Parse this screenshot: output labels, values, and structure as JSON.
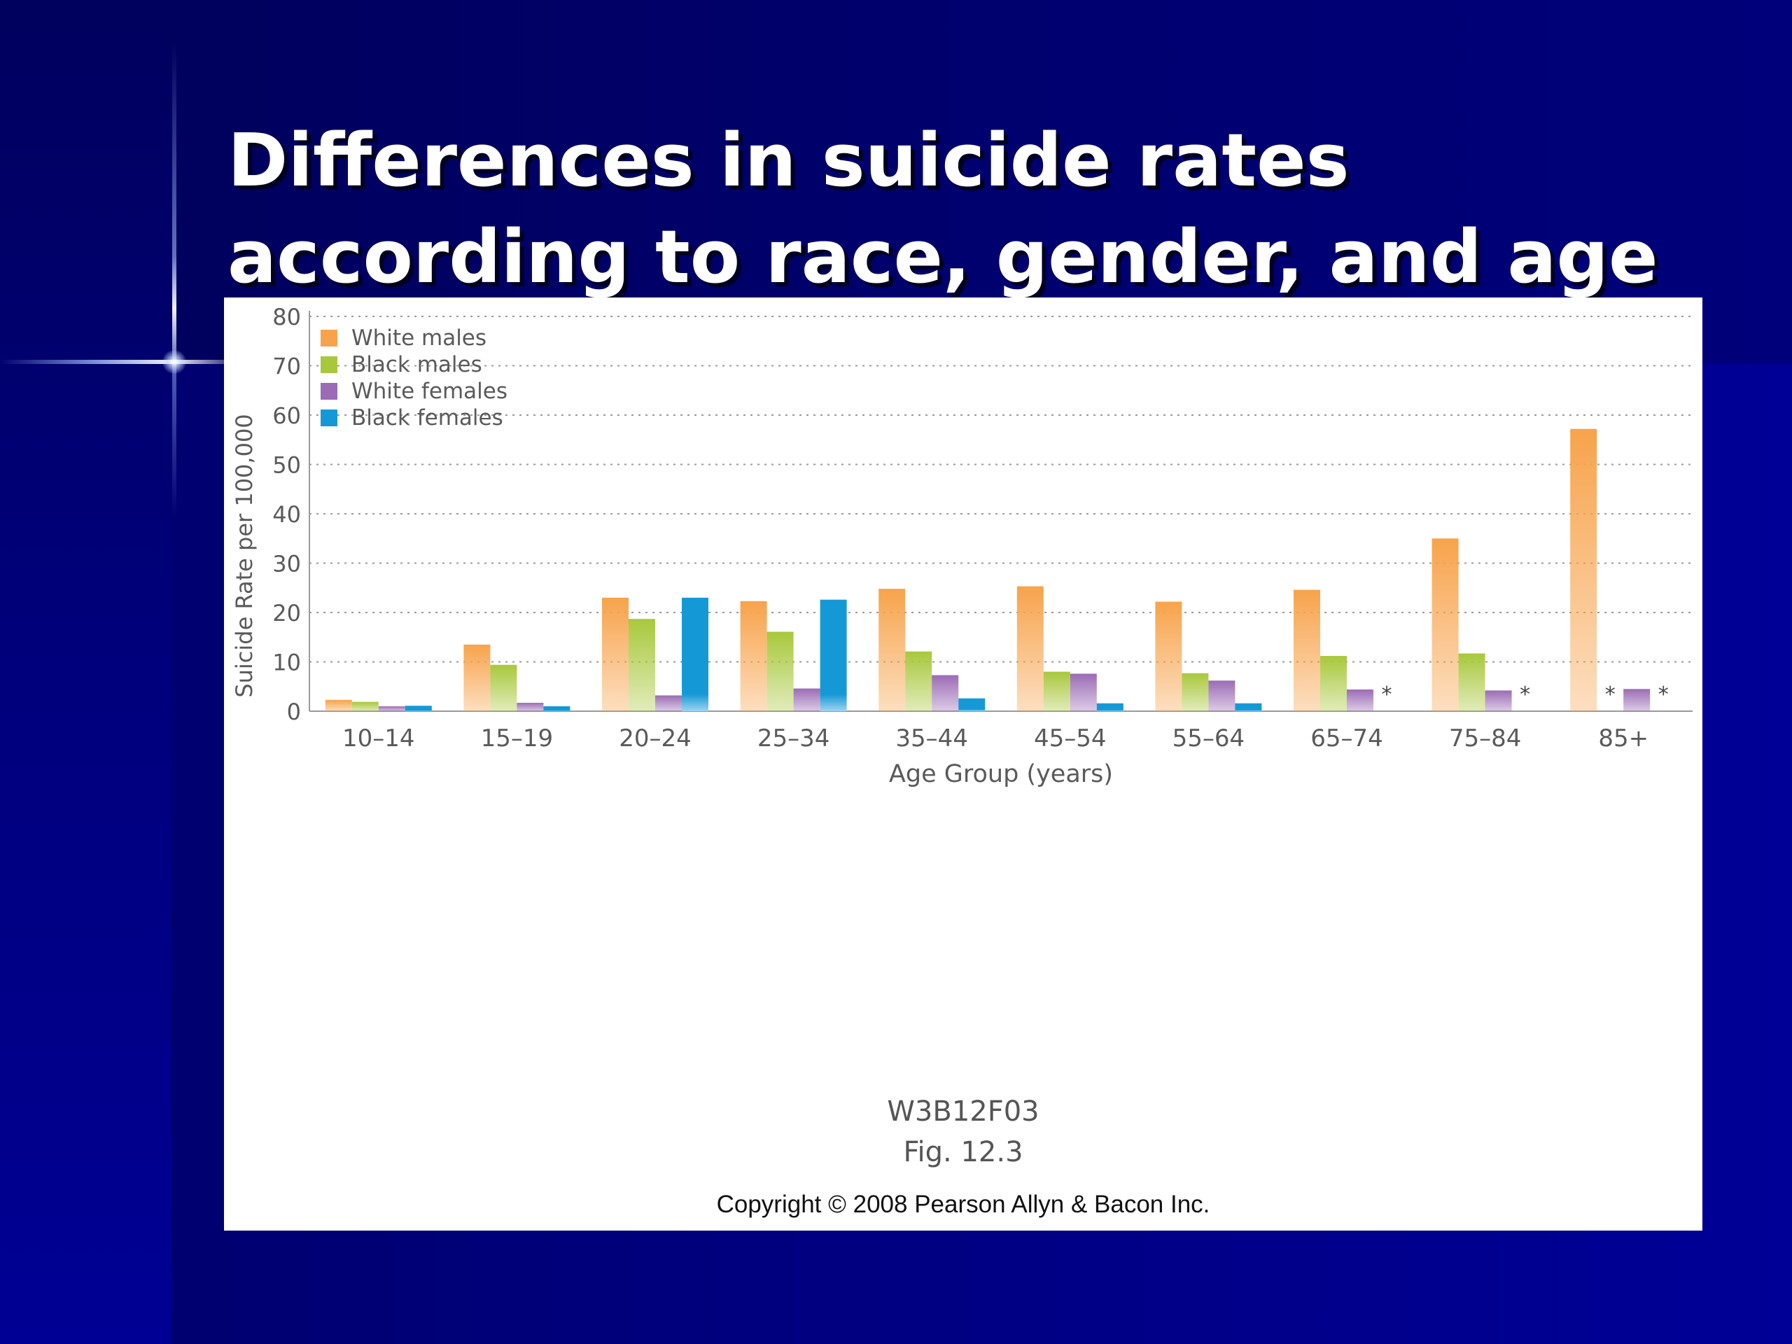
{
  "slide": {
    "title_line1": "Differences in suicide rates",
    "title_line2": "according to race, gender, and age"
  },
  "figure": {
    "code": "W3B12F03",
    "number": "Fig. 12.3",
    "copyright": "Copyright © 2008 Pearson Allyn & Bacon Inc."
  },
  "chart_data": {
    "type": "bar",
    "title": "",
    "xlabel": "Age Group (years)",
    "ylabel": "Suicide Rate per 100,000",
    "ylim": [
      0,
      80
    ],
    "yticks": [
      0,
      10,
      20,
      30,
      40,
      50,
      60,
      70,
      80
    ],
    "grid": true,
    "legend_position": "top-left",
    "categories": [
      "10–14",
      "15–19",
      "20–24",
      "25–34",
      "35–44",
      "45–54",
      "55–64",
      "65–74",
      "75–84",
      "85+"
    ],
    "missing_marker": "*",
    "series": [
      {
        "name": "White males",
        "color": "#f7a34b",
        "values": [
          2.3,
          13.5,
          23,
          22.3,
          24.8,
          25.3,
          22.2,
          24.6,
          35,
          57.2
        ]
      },
      {
        "name": "Black males",
        "color": "#a8c83c",
        "values": [
          1.9,
          9.4,
          18.7,
          16.1,
          12.1,
          8,
          7.7,
          11.2,
          11.7,
          null
        ]
      },
      {
        "name": "White females",
        "color": "#9b6cb5",
        "values": [
          1,
          1.7,
          3.2,
          4.6,
          7.3,
          7.6,
          6.2,
          4.4,
          4.2,
          4.5
        ]
      },
      {
        "name": "Black females",
        "color": "#1599d6",
        "values": [
          1.1,
          1,
          23,
          22.6,
          2.6,
          1.6,
          1.6,
          null,
          null,
          null
        ]
      }
    ]
  }
}
